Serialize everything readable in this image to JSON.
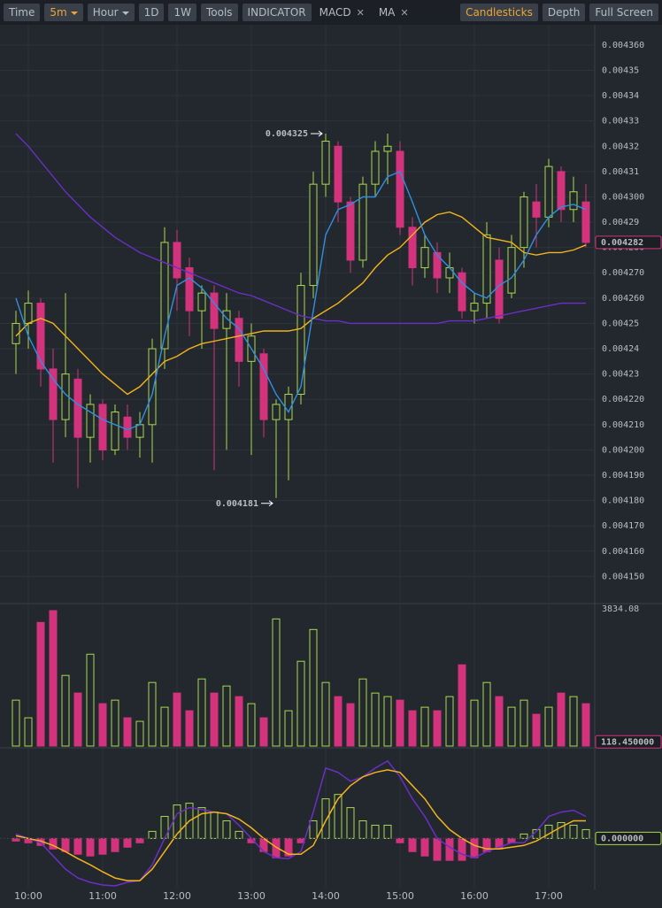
{
  "toolbar": {
    "left": [
      "Time",
      "5m",
      "Hour",
      "1D",
      "1W",
      "Tools",
      "INDICATOR",
      "MACD",
      "MA"
    ],
    "right": [
      "Candlesticks",
      "Depth",
      "Full Screen"
    ]
  },
  "chart_data": [
    {
      "type": "candlestick",
      "categories": [
        null,
        "10:00",
        null,
        null,
        null,
        null,
        null,
        "11:00",
        null,
        null,
        null,
        null,
        null,
        "12:00",
        null,
        null,
        null,
        null,
        null,
        "13:00",
        null,
        null,
        null,
        null,
        null,
        "14:00",
        null,
        null,
        null,
        null,
        null,
        "15:00",
        null,
        null,
        null,
        null,
        null,
        "16:00",
        null,
        null,
        null,
        null,
        null,
        "17:00",
        null,
        null,
        null
      ],
      "open": [
        0.004242,
        0.00425,
        0.004258,
        0.004232,
        0.004212,
        0.004228,
        0.004205,
        0.004218,
        0.0042,
        0.004213,
        0.004205,
        0.00421,
        0.00424,
        0.004282,
        0.004272,
        0.004255,
        0.004262,
        0.004248,
        0.004252,
        0.004235,
        0.004238,
        0.004212,
        0.004212,
        0.004222,
        0.004265,
        0.004305,
        0.00432,
        0.004298,
        0.004275,
        0.004305,
        0.004318,
        0.004318,
        0.004288,
        0.004272,
        0.004278,
        0.004268,
        0.00427,
        0.004255,
        0.004258,
        0.004275,
        0.004262,
        0.00428,
        0.004298,
        0.004292,
        0.00431,
        0.004295,
        0.004298
      ],
      "high": [
        0.004255,
        0.004263,
        0.00426,
        0.00424,
        0.004262,
        0.004232,
        0.004222,
        0.00422,
        0.004218,
        0.004218,
        0.004215,
        0.004244,
        0.004288,
        0.004287,
        0.004276,
        0.004265,
        0.004265,
        0.004262,
        0.004255,
        0.00425,
        0.00424,
        0.00422,
        0.004225,
        0.00427,
        0.00431,
        0.004325,
        0.004322,
        0.0043,
        0.004308,
        0.004322,
        0.004325,
        0.004322,
        0.004292,
        0.004285,
        0.004282,
        0.004278,
        0.004272,
        0.004262,
        0.00429,
        0.00428,
        0.004285,
        0.004302,
        0.004305,
        0.004315,
        0.004312,
        0.004308,
        0.004305
      ],
      "low": [
        0.00423,
        0.00424,
        0.004225,
        0.004195,
        0.004205,
        0.004185,
        0.004195,
        0.004196,
        0.004198,
        0.0042,
        0.004197,
        0.004195,
        0.004232,
        0.004255,
        0.004245,
        0.00424,
        0.004192,
        0.0042,
        0.004225,
        0.004198,
        0.004205,
        0.004181,
        0.004188,
        0.004218,
        0.00426,
        0.0043,
        0.00429,
        0.00427,
        0.004272,
        0.0043,
        0.004305,
        0.004285,
        0.004265,
        0.004268,
        0.004262,
        0.004262,
        0.004252,
        0.00425,
        0.004252,
        0.00425,
        0.00426,
        0.004272,
        0.00428,
        0.004288,
        0.00429,
        0.00429,
        0.00428
      ],
      "close": [
        0.00425,
        0.004258,
        0.004232,
        0.004212,
        0.00423,
        0.004205,
        0.004218,
        0.0042,
        0.004215,
        0.004205,
        0.00421,
        0.00424,
        0.004282,
        0.004268,
        0.004255,
        0.004262,
        0.004248,
        0.004255,
        0.004235,
        0.004245,
        0.004212,
        0.004218,
        0.004222,
        0.004265,
        0.004305,
        0.004322,
        0.004298,
        0.004275,
        0.004305,
        0.004318,
        0.00432,
        0.004288,
        0.004272,
        0.00428,
        0.004268,
        0.004272,
        0.004255,
        0.004258,
        0.004285,
        0.004252,
        0.00428,
        0.0043,
        0.004292,
        0.004312,
        0.004295,
        0.004302,
        0.004282
      ],
      "up_color": "#a9d94b",
      "down_color": "#d3327d",
      "series": [
        {
          "color": "#6a2fc4",
          "values": [
            0.004325,
            0.00432,
            0.004314,
            0.004308,
            0.004302,
            0.004297,
            0.004292,
            0.004288,
            0.004284,
            0.004281,
            0.004278,
            0.004276,
            0.004274,
            0.004272,
            0.00427,
            0.004268,
            0.004266,
            0.004264,
            0.004262,
            0.004261,
            0.004259,
            0.004257,
            0.004255,
            0.004253,
            0.004252,
            0.004251,
            0.004251,
            0.00425,
            0.00425,
            0.00425,
            0.00425,
            0.00425,
            0.00425,
            0.00425,
            0.00425,
            0.004251,
            0.004251,
            0.004251,
            0.004252,
            0.004253,
            0.004254,
            0.004255,
            0.004256,
            0.004257,
            0.004258,
            0.004258,
            0.004258
          ]
        },
        {
          "color": "#f2b31c",
          "values": [
            0.004245,
            0.00425,
            0.004252,
            0.00425,
            0.004245,
            0.00424,
            0.004235,
            0.00423,
            0.004226,
            0.004222,
            0.004225,
            0.00423,
            0.004235,
            0.004237,
            0.00424,
            0.004242,
            0.004243,
            0.004244,
            0.004245,
            0.004246,
            0.004247,
            0.004247,
            0.004247,
            0.004248,
            0.004252,
            0.004255,
            0.004258,
            0.004262,
            0.004266,
            0.004272,
            0.004277,
            0.00428,
            0.004285,
            0.00429,
            0.004293,
            0.004294,
            0.004292,
            0.004288,
            0.004284,
            0.004283,
            0.004282,
            0.004278,
            0.004277,
            0.004278,
            0.004278,
            0.004279,
            0.004281
          ]
        },
        {
          "color": "#2f8fe0",
          "values": [
            0.00426,
            0.004245,
            0.004235,
            0.004228,
            0.004222,
            0.004218,
            0.004215,
            0.004212,
            0.00421,
            0.004208,
            0.00421,
            0.004222,
            0.004245,
            0.004265,
            0.004268,
            0.004264,
            0.004258,
            0.004252,
            0.004248,
            0.00424,
            0.004232,
            0.004222,
            0.004215,
            0.004225,
            0.004255,
            0.004285,
            0.004295,
            0.004297,
            0.0043,
            0.0043,
            0.004308,
            0.00431,
            0.004298,
            0.004285,
            0.004277,
            0.004272,
            0.004266,
            0.004262,
            0.00426,
            0.004265,
            0.004268,
            0.004275,
            0.004285,
            0.004292,
            0.004296,
            0.004297,
            0.004295
          ]
        }
      ],
      "ylim": [
        0.00414,
        0.004368
      ],
      "yticks": [
        {
          "value": 0.00436,
          "label": "0.004360"
        },
        0.00435,
        0.00434,
        0.00433,
        0.00432,
        0.00431,
        {
          "value": 0.0043,
          "label": "0.004300"
        },
        0.00429,
        {
          "value": 0.00428,
          "label": "0.004280"
        },
        {
          "value": 0.00427,
          "label": "0.004270"
        },
        {
          "value": 0.00426,
          "label": "0.004260"
        },
        0.00425,
        0.00424,
        0.00423,
        {
          "value": 0.00422,
          "label": "0.004220"
        },
        {
          "value": 0.00421,
          "label": "0.004210"
        },
        {
          "value": 0.0042,
          "label": "0.004200"
        },
        {
          "value": 0.00419,
          "label": "0.004190"
        },
        {
          "value": 0.00418,
          "label": "0.004180"
        },
        {
          "value": 0.00417,
          "label": "0.004170"
        },
        {
          "value": 0.00416,
          "label": "0.004160"
        },
        {
          "value": 0.00415,
          "label": "0.004150"
        }
      ],
      "high_label": 0.004325,
      "low_label": 0.004181,
      "last_price": 0.004282,
      "grid": true
    },
    {
      "type": "volume",
      "values": [
        1300,
        800,
        3500,
        3834,
        2000,
        1500,
        2600,
        1200,
        1300,
        800,
        700,
        1800,
        1100,
        1500,
        1000,
        1900,
        1500,
        1700,
        1400,
        1200,
        800,
        3600,
        1000,
        2400,
        3300,
        1800,
        1400,
        1200,
        1900,
        1500,
        1400,
        1300,
        1000,
        1100,
        1000,
        1400,
        2300,
        1300,
        1800,
        1400,
        1100,
        1300,
        900,
        1100,
        1500,
        1400,
        1200
      ],
      "ylim": [
        0,
        3834.08
      ],
      "yticks": [
        3834.08
      ],
      "last": {
        "value": 118.45,
        "label": "118.450000"
      }
    },
    {
      "type": "macd",
      "values": [
        -0.3,
        -0.5,
        -0.8,
        -1.2,
        -1.5,
        -1.8,
        -2.0,
        -1.8,
        -1.5,
        -1.0,
        -0.5,
        0.8,
        2.5,
        3.8,
        4.0,
        3.5,
        3.0,
        2.0,
        0.8,
        -0.5,
        -1.5,
        -2.2,
        -2.0,
        -0.5,
        2.0,
        4.5,
        5.0,
        3.5,
        2.0,
        1.5,
        1.5,
        -0.5,
        -1.5,
        -2.0,
        -2.5,
        -2.5,
        -2.5,
        -2.2,
        -1.5,
        -1.2,
        -0.5,
        0.5,
        1.0,
        1.5,
        1.8,
        1.5,
        1.0
      ],
      "series": [
        {
          "color": "#6a2fc4",
          "values": [
            0.5,
            0,
            -0.5,
            -2,
            -3.5,
            -4.5,
            -5,
            -5.3,
            -5.4,
            -5,
            -4.8,
            -3,
            0,
            2.8,
            3.5,
            3.3,
            3.0,
            2.8,
            1.5,
            0,
            -1.5,
            -2.2,
            -2.3,
            -1.5,
            3.0,
            8.0,
            7.5,
            6.5,
            7.0,
            8.0,
            8.8,
            7.0,
            4.5,
            2.5,
            0,
            -1.0,
            -1.8,
            -2.2,
            -1.5,
            -1.0,
            -0.5,
            -0.5,
            0.8,
            2.5,
            3.0,
            3.2,
            2.5
          ]
        },
        {
          "color": "#f2b31c",
          "values": [
            0.3,
            0,
            -0.3,
            -0.8,
            -1.5,
            -2.3,
            -3.0,
            -3.8,
            -4.5,
            -4.8,
            -4.8,
            -3.5,
            -1.5,
            0.5,
            2,
            2.8,
            3.0,
            2.8,
            2.2,
            1.2,
            0,
            -1.0,
            -1.8,
            -1.8,
            -0.8,
            2.0,
            4.5,
            6.0,
            7.0,
            7.5,
            7.8,
            7.5,
            6.0,
            4.5,
            2.5,
            1.0,
            0,
            -0.8,
            -1.2,
            -1.2,
            -1.0,
            -0.8,
            -0.3,
            0.5,
            1.3,
            2.0,
            2.0
          ]
        }
      ],
      "ylim": [
        -5.6,
        10
      ],
      "yticks": [
        {
          "value": 0,
          "label": "0.000000"
        }
      ]
    }
  ]
}
